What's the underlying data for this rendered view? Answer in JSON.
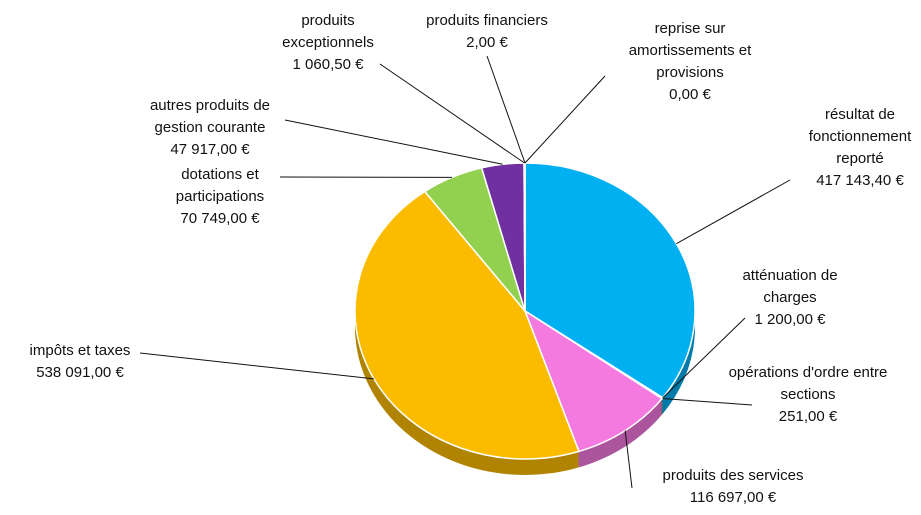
{
  "chart_data": {
    "type": "pie",
    "categories": [
      "résultat de fonctionnement reporté",
      "atténuation de charges",
      "opérations d'ordre entre sections",
      "produits des services",
      "impôts et taxes",
      "dotations et participations",
      "autres produits de gestion courante",
      "produits exceptionnels",
      "produits financiers",
      "reprise sur amortissements et provisions"
    ],
    "values": [
      417143.4,
      1200,
      251,
      116697,
      538091,
      70749,
      47917,
      1060.5,
      2,
      0
    ],
    "value_labels": [
      "417 143,40 €",
      "1 200,00 €",
      "251,00 €",
      "116 697,00 €",
      "538 091,00 €",
      "70 749,00 €",
      "47 917,00 €",
      "1 060,50 €",
      "2,00 €",
      "0,00 €"
    ],
    "colors": [
      "#00b0f0",
      "#ed7d31",
      "#a5a5a5",
      "#f47ae0",
      "#fbbc00",
      "#92d050",
      "#7030a0",
      "#4472c4",
      "#c00000",
      "#70ad47"
    ]
  }
}
